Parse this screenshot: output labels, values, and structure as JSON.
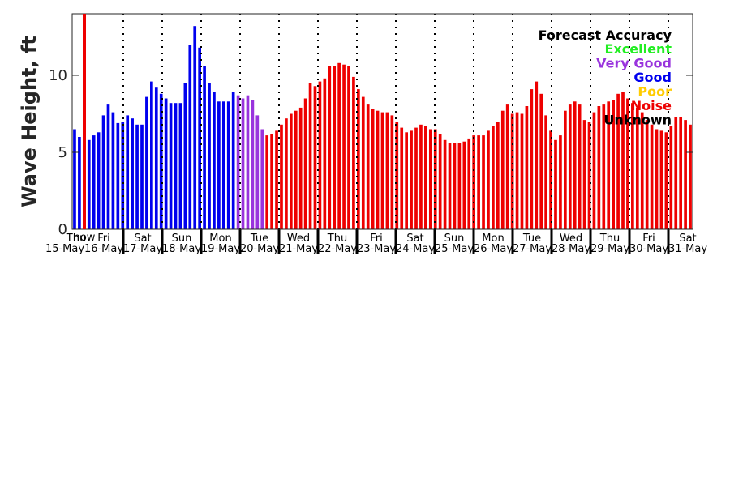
{
  "chart_data": {
    "type": "bar",
    "ylabel": "Wave Height, ft",
    "ylim": [
      0,
      14
    ],
    "yticks": [
      0,
      5,
      10
    ],
    "grid": false,
    "legend_placement": "top-right",
    "legend": {
      "title": "Forecast Accuracy",
      "entries": [
        {
          "label": "Excellent",
          "color": "#22ee22"
        },
        {
          "label": "Very Good",
          "color": "#9933dd"
        },
        {
          "label": "Good",
          "color": "#0000ee"
        },
        {
          "label": "Poor",
          "color": "#ffcc00"
        },
        {
          "label": "Noise",
          "color": "#ee0000"
        },
        {
          "label": "Unknown",
          "color": "#000000"
        }
      ]
    },
    "now_label": "now",
    "now_color": "#ee0000",
    "days": [
      {
        "day": "Thu",
        "date": "15-May"
      },
      {
        "day": "Fri",
        "date": "16-May"
      },
      {
        "day": "Sat",
        "date": "17-May"
      },
      {
        "day": "Sun",
        "date": "18-May"
      },
      {
        "day": "Mon",
        "date": "19-May"
      },
      {
        "day": "Tue",
        "date": "20-May"
      },
      {
        "day": "Wed",
        "date": "21-May"
      },
      {
        "day": "Thu",
        "date": "22-May"
      },
      {
        "day": "Fri",
        "date": "23-May"
      },
      {
        "day": "Sat",
        "date": "24-May"
      },
      {
        "day": "Sun",
        "date": "25-May"
      },
      {
        "day": "Mon",
        "date": "26-May"
      },
      {
        "day": "Tue",
        "date": "27-May"
      },
      {
        "day": "Wed",
        "date": "28-May"
      },
      {
        "day": "Thu",
        "date": "29-May"
      },
      {
        "day": "Fri",
        "date": "30-May"
      },
      {
        "day": "Sat",
        "date": "31-May"
      }
    ],
    "series": [
      {
        "accuracy": "Good",
        "color": "#0000ee",
        "values": [
          6.5,
          6.0,
          5.6,
          5.8,
          6.1,
          6.3,
          7.4,
          8.1,
          7.6,
          6.9,
          7.0,
          7.4,
          7.2,
          6.8,
          6.8,
          8.6,
          9.6,
          9.2,
          8.8,
          8.5,
          8.2,
          8.2,
          8.2,
          9.5,
          12.0,
          13.2,
          11.8,
          10.6,
          9.5,
          8.9,
          8.3,
          8.3,
          8.3,
          8.9
        ]
      },
      {
        "accuracy": "Very Good",
        "color": "#9933dd",
        "values": [
          8.7,
          8.5,
          8.7,
          8.4,
          7.4,
          6.5
        ]
      },
      {
        "accuracy": "Noise",
        "color": "#ee0000",
        "values": [
          6.1,
          6.2,
          6.4,
          6.8,
          7.2,
          7.5,
          7.7,
          7.9,
          8.5,
          9.5,
          9.3,
          9.6,
          9.8,
          10.6,
          10.6,
          10.8,
          10.7,
          10.6,
          9.9,
          9.1,
          8.6,
          8.1,
          7.8,
          7.7,
          7.6,
          7.6,
          7.4,
          7.0,
          6.6,
          6.3,
          6.4,
          6.6,
          6.8,
          6.7,
          6.5,
          6.5,
          6.2,
          5.8,
          5.6,
          5.6,
          5.6,
          5.7,
          5.9,
          6.1,
          6.1,
          6.1,
          6.4,
          6.7,
          7.0,
          7.7,
          8.1,
          7.5,
          7.6,
          7.5,
          8.0,
          9.1,
          9.6,
          8.8,
          7.4,
          6.4,
          5.8,
          6.1,
          7.7,
          8.1,
          8.3,
          8.1,
          7.1,
          7.0,
          7.6,
          8.0,
          8.1,
          8.3,
          8.4,
          8.8,
          8.9,
          8.5,
          8.2,
          7.9,
          7.6,
          7.1,
          6.8,
          6.5,
          6.4,
          6.3,
          6.7,
          7.3,
          7.3,
          7.1,
          6.8
        ]
      }
    ]
  }
}
